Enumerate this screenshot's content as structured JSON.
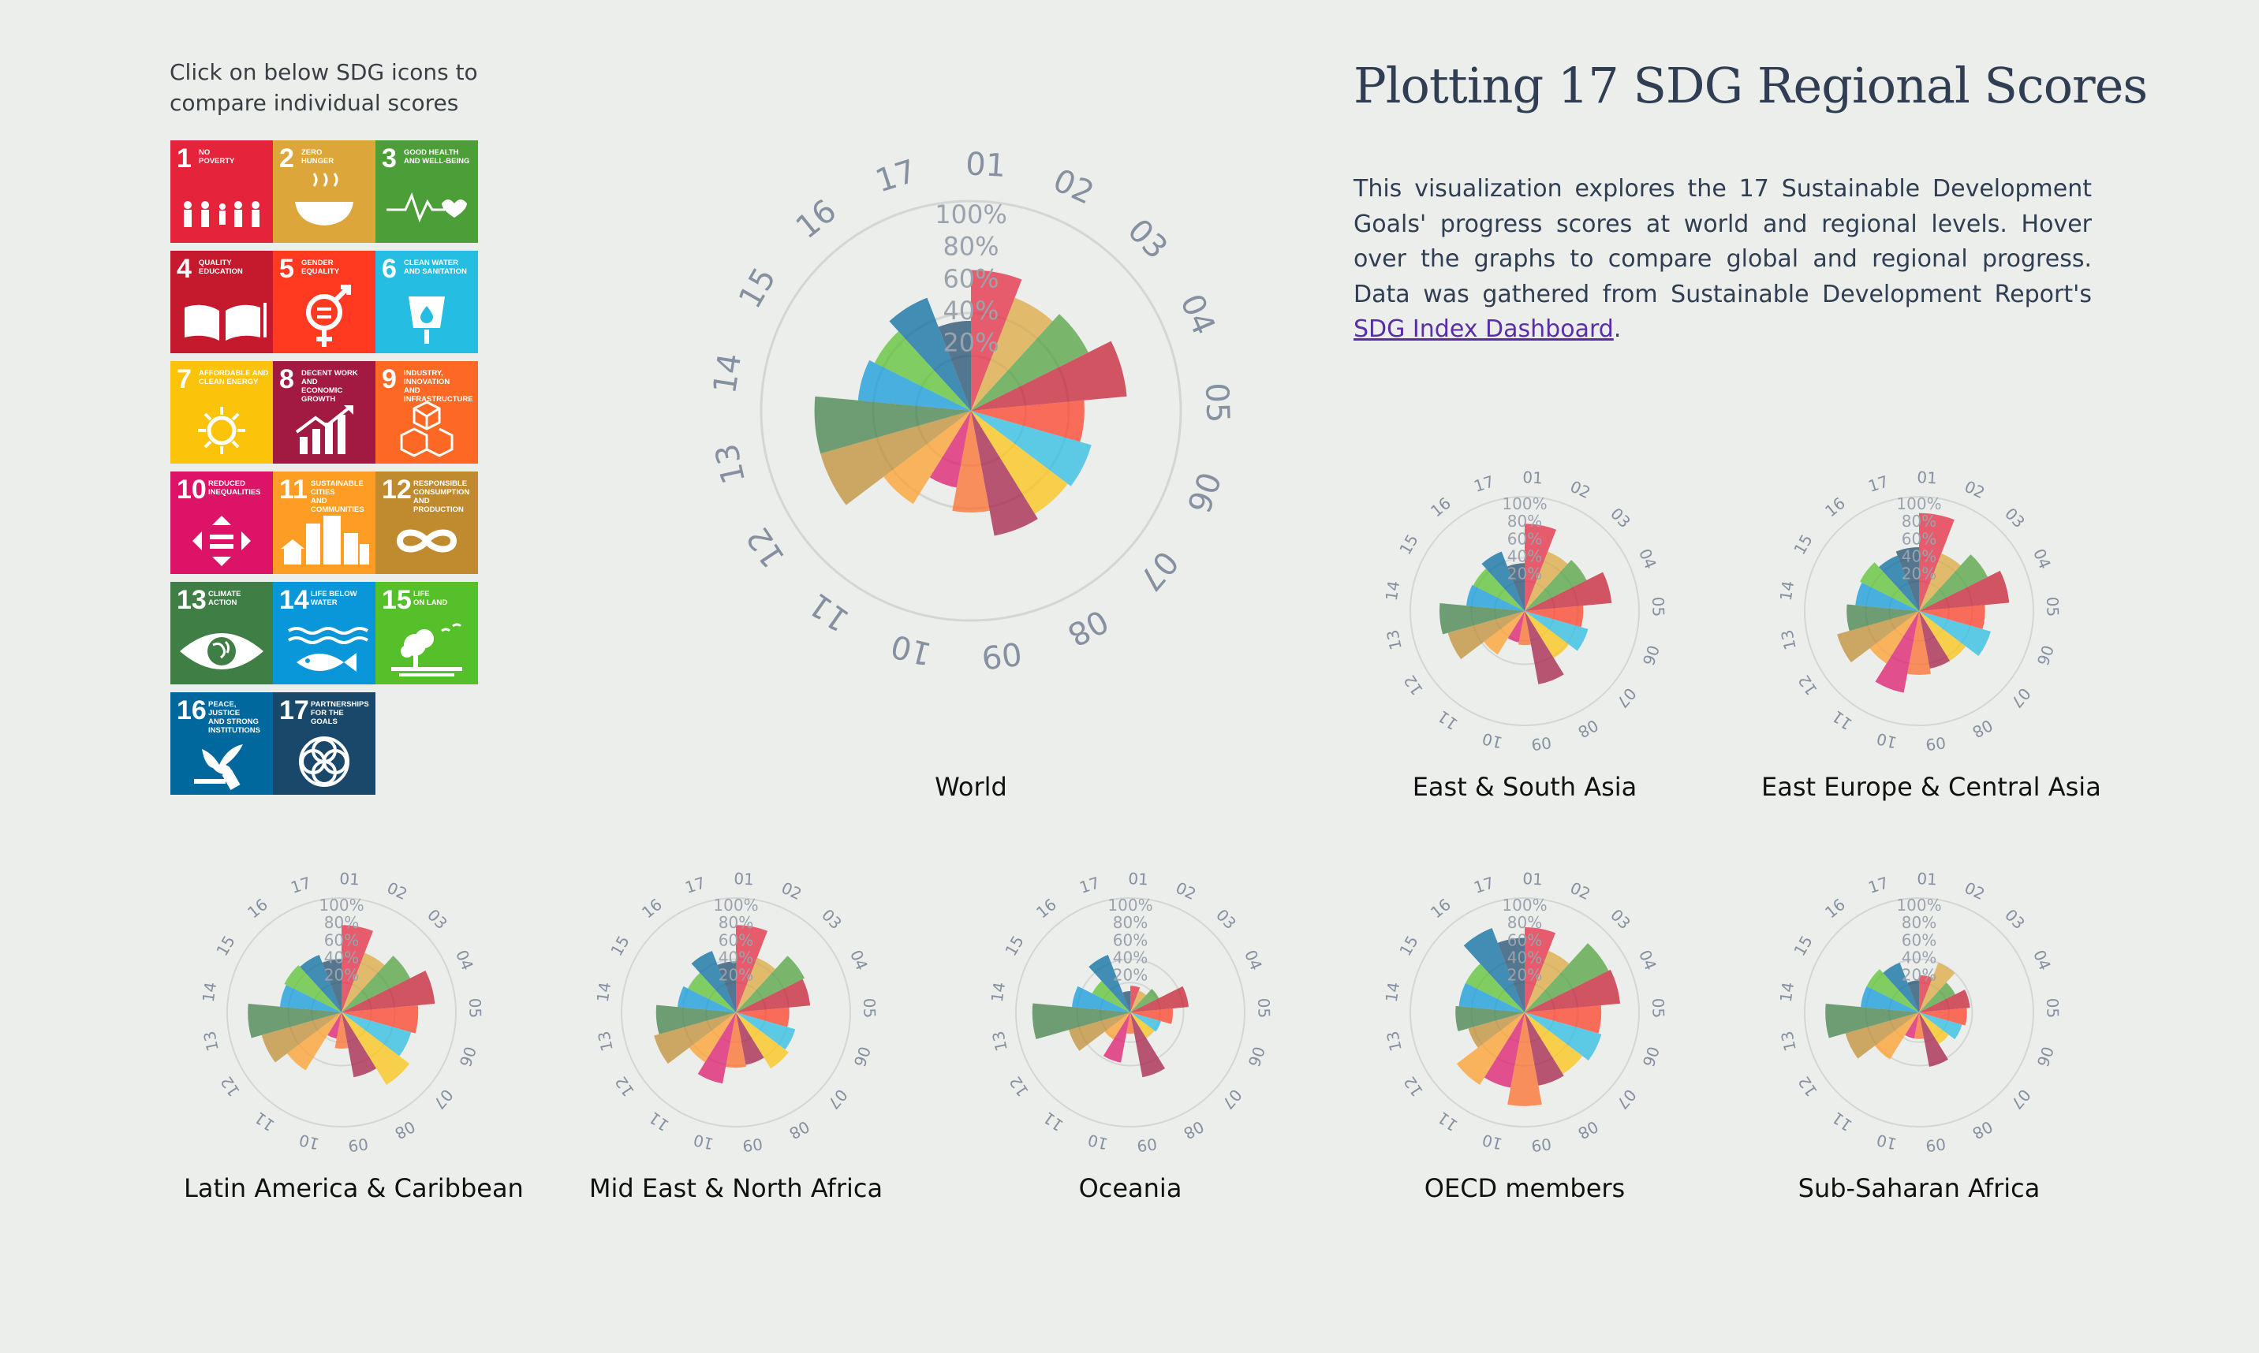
{
  "instructions": "Click on below SDG icons to compare individual scores",
  "title": "Plotting 17 SDG Regional Scores",
  "description": {
    "text": "This visualization explores the 17 Sustainable Development Goals' progress scores at world and regional levels. Hover over the graphs to compare global and regional progress. Data was gathered from Sustainable Development Report's ",
    "link_text": "SDG Index Dashboard",
    "after_link": "."
  },
  "sdg_tiles": [
    {
      "number": "1",
      "label": "NO\nPOVERTY",
      "color": "#e5243b",
      "icon": "family-icon"
    },
    {
      "number": "2",
      "label": "ZERO\nHUNGER",
      "color": "#dda63a",
      "icon": "bowl-icon"
    },
    {
      "number": "3",
      "label": "GOOD HEALTH\nAND WELL-BEING",
      "color": "#4c9f38",
      "icon": "heartbeat-icon"
    },
    {
      "number": "4",
      "label": "QUALITY\nEDUCATION",
      "color": "#c5192d",
      "icon": "book-icon"
    },
    {
      "number": "5",
      "label": "GENDER\nEQUALITY",
      "color": "#ff3a21",
      "icon": "gender-icon"
    },
    {
      "number": "6",
      "label": "CLEAN WATER\nAND SANITATION",
      "color": "#26bde2",
      "icon": "water-icon"
    },
    {
      "number": "7",
      "label": "AFFORDABLE AND\nCLEAN ENERGY",
      "color": "#fcc30b",
      "icon": "sun-icon"
    },
    {
      "number": "8",
      "label": "DECENT WORK AND\nECONOMIC GROWTH",
      "color": "#a21942",
      "icon": "growth-icon"
    },
    {
      "number": "9",
      "label": "INDUSTRY, INNOVATION\nAND INFRASTRUCTURE",
      "color": "#fd6925",
      "icon": "cubes-icon"
    },
    {
      "number": "10",
      "label": "REDUCED\nINEQUALITIES",
      "color": "#dd1367",
      "icon": "equality-icon"
    },
    {
      "number": "11",
      "label": "SUSTAINABLE CITIES\nAND COMMUNITIES",
      "color": "#fd9d24",
      "icon": "city-icon"
    },
    {
      "number": "12",
      "label": "RESPONSIBLE\nCONSUMPTION\nAND PRODUCTION",
      "color": "#bf8b2e",
      "icon": "infinity-icon"
    },
    {
      "number": "13",
      "label": "CLIMATE\nACTION",
      "color": "#3f7e44",
      "icon": "eye-globe-icon"
    },
    {
      "number": "14",
      "label": "LIFE BELOW\nWATER",
      "color": "#0a97d9",
      "icon": "fish-icon"
    },
    {
      "number": "15",
      "label": "LIFE\nON LAND",
      "color": "#56c02b",
      "icon": "tree-icon"
    },
    {
      "number": "16",
      "label": "PEACE, JUSTICE\nAND STRONG\nINSTITUTIONS",
      "color": "#00689d",
      "icon": "dove-icon"
    },
    {
      "number": "17",
      "label": "PARTNERSHIPS\nFOR THE GOALS",
      "color": "#19486a",
      "icon": "flower-icon"
    }
  ],
  "chart_data": [
    {
      "type": "polar-bar",
      "title": "World",
      "categories": [
        "01",
        "02",
        "03",
        "04",
        "05",
        "06",
        "07",
        "08",
        "09",
        "10",
        "11",
        "12",
        "13",
        "14",
        "15",
        "16",
        "17"
      ],
      "radial_ticks": [
        "20%",
        "40%",
        "60%",
        "80%",
        "100%"
      ],
      "rlim": [
        0,
        100
      ],
      "values": [
        72,
        62,
        67,
        80,
        58,
        64,
        62,
        65,
        52,
        40,
        56,
        80,
        80,
        58,
        55,
        62,
        46
      ],
      "colors": [
        "#e5243b",
        "#dda63a",
        "#4c9f38",
        "#c5192d",
        "#ff3a21",
        "#26bde2",
        "#fcc30b",
        "#a21942",
        "#fd6925",
        "#dd1367",
        "#fd9d24",
        "#bf8b2e",
        "#3f7e44",
        "#0a97d9",
        "#56c02b",
        "#00689d",
        "#19486a"
      ]
    },
    {
      "type": "polar-bar",
      "title": "East & South Asia",
      "categories": [
        "01",
        "02",
        "03",
        "04",
        "05",
        "06",
        "07",
        "08",
        "09",
        "10",
        "11",
        "12",
        "13",
        "14",
        "15",
        "16",
        "17"
      ],
      "radial_ticks": [
        "20%",
        "40%",
        "60%",
        "80%",
        "100%"
      ],
      "rlim": [
        0,
        100
      ],
      "values": [
        82,
        60,
        65,
        82,
        55,
        62,
        52,
        70,
        32,
        30,
        48,
        75,
        80,
        55,
        54,
        60,
        45
      ]
    },
    {
      "type": "polar-bar",
      "title": "East Europe & Central Asia",
      "categories": [
        "01",
        "02",
        "03",
        "04",
        "05",
        "06",
        "07",
        "08",
        "09",
        "10",
        "11",
        "12",
        "13",
        "14",
        "15",
        "16",
        "17"
      ],
      "radial_ticks": [
        "20%",
        "40%",
        "60%",
        "80%",
        "100%"
      ],
      "rlim": [
        0,
        100
      ],
      "values": [
        92,
        58,
        72,
        85,
        62,
        70,
        55,
        55,
        60,
        78,
        58,
        80,
        68,
        60,
        62,
        56,
        60
      ]
    },
    {
      "type": "polar-bar",
      "title": "Latin America & Caribbean",
      "categories": [
        "01",
        "02",
        "03",
        "04",
        "05",
        "06",
        "07",
        "08",
        "09",
        "10",
        "11",
        "12",
        "13",
        "14",
        "15",
        "16",
        "17"
      ],
      "radial_ticks": [
        "20%",
        "40%",
        "60%",
        "80%",
        "100%"
      ],
      "rlim": [
        0,
        100
      ],
      "values": [
        82,
        60,
        72,
        88,
        72,
        68,
        80,
        62,
        34,
        25,
        64,
        78,
        88,
        58,
        60,
        58,
        50
      ]
    },
    {
      "type": "polar-bar",
      "title": "Mid East & North Africa",
      "categories": [
        "01",
        "02",
        "03",
        "04",
        "05",
        "06",
        "07",
        "08",
        "09",
        "10",
        "11",
        "12",
        "13",
        "14",
        "15",
        "16",
        "17"
      ],
      "radial_ticks": [
        "20%",
        "40%",
        "60%",
        "80%",
        "100%"
      ],
      "rlim": [
        0,
        100
      ],
      "values": [
        82,
        55,
        72,
        70,
        50,
        58,
        62,
        50,
        52,
        68,
        55,
        80,
        75,
        55,
        50,
        62,
        48
      ]
    },
    {
      "type": "polar-bar",
      "title": "Oceania",
      "categories": [
        "01",
        "02",
        "03",
        "04",
        "05",
        "06",
        "07",
        "08",
        "09",
        "10",
        "11",
        "12",
        "13",
        "14",
        "15",
        "16",
        "17"
      ],
      "radial_ticks": [
        "20%",
        "40%",
        "60%",
        "80%",
        "100%"
      ],
      "rlim": [
        0,
        100
      ],
      "values": [
        25,
        22,
        30,
        55,
        40,
        30,
        28,
        62,
        20,
        48,
        30,
        60,
        92,
        55,
        40,
        58,
        20
      ]
    },
    {
      "type": "polar-bar",
      "title": "OECD members",
      "categories": [
        "01",
        "02",
        "03",
        "04",
        "05",
        "06",
        "07",
        "08",
        "09",
        "10",
        "11",
        "12",
        "13",
        "14",
        "15",
        "16",
        "17"
      ],
      "radial_ticks": [
        "20%",
        "40%",
        "60%",
        "80%",
        "100%"
      ],
      "rlim": [
        0,
        100
      ],
      "values": [
        80,
        62,
        88,
        90,
        72,
        75,
        68,
        70,
        88,
        72,
        80,
        55,
        65,
        62,
        62,
        85,
        70
      ]
    },
    {
      "type": "polar-bar",
      "title": "Sub-Saharan Africa",
      "categories": [
        "01",
        "02",
        "03",
        "04",
        "05",
        "06",
        "07",
        "08",
        "09",
        "10",
        "11",
        "12",
        "13",
        "14",
        "15",
        "16",
        "17"
      ],
      "radial_ticks": [
        "20%",
        "40%",
        "60%",
        "80%",
        "100%"
      ],
      "rlim": [
        0,
        100
      ],
      "values": [
        35,
        50,
        38,
        48,
        45,
        42,
        35,
        52,
        25,
        25,
        52,
        72,
        88,
        55,
        55,
        50,
        30
      ]
    }
  ]
}
